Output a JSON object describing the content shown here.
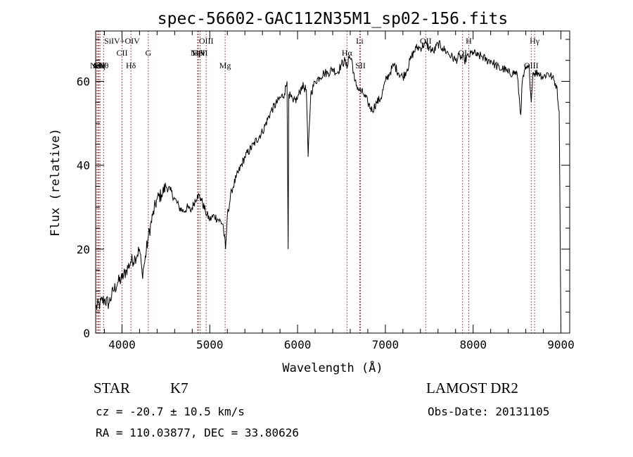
{
  "chart_data": {
    "type": "line",
    "title": "spec-56602-GAC112N35M1_sp02-156.fits",
    "xlabel": "Wavelength (Å)",
    "ylabel": "Flux (relative)",
    "xlim": [
      3700,
      9100
    ],
    "ylim": [
      0,
      72
    ],
    "xticks": [
      4000,
      5000,
      6000,
      7000,
      8000,
      9000
    ],
    "yticks": [
      0,
      20,
      40,
      60
    ],
    "grid": false,
    "line_color": "#000000",
    "marker_color": "#8b1a1a",
    "series": [
      {
        "x": [
          3700,
          3750,
          3800,
          3850,
          3900,
          3950,
          4000,
          4050,
          4100,
          4150,
          4200,
          4230,
          4260,
          4300,
          4350,
          4400,
          4450,
          4500,
          4550,
          4600,
          4650,
          4700,
          4750,
          4780,
          4820,
          4860,
          4900,
          4950,
          5000,
          5050,
          5100,
          5150,
          5180,
          5200,
          5250,
          5300,
          5400,
          5500,
          5600,
          5700,
          5800,
          5850,
          5880,
          5893,
          5900,
          5950,
          6000,
          6050,
          6100,
          6120,
          6150,
          6200,
          6250,
          6300,
          6350,
          6400,
          6450,
          6500,
          6540,
          6563,
          6580,
          6620,
          6650,
          6700,
          6750,
          6800,
          6850,
          6900,
          6950,
          7000,
          7050,
          7100,
          7150,
          7200,
          7250,
          7300,
          7350,
          7400,
          7450,
          7500,
          7550,
          7600,
          7650,
          7700,
          7750,
          7800,
          7850,
          7900,
          7950,
          8000,
          8050,
          8100,
          8150,
          8200,
          8250,
          8300,
          8350,
          8400,
          8450,
          8500,
          8542,
          8560,
          8600,
          8640,
          8662,
          8680,
          8700,
          8750,
          8800,
          8850,
          8900,
          8950,
          8980,
          9000
        ],
        "y": [
          6,
          7,
          8,
          7,
          10,
          12,
          13,
          15,
          17,
          18,
          20,
          14,
          17,
          23,
          28,
          32,
          33,
          35,
          34,
          32,
          30,
          29,
          30,
          29,
          31,
          33,
          32,
          29,
          27,
          28,
          27,
          26,
          20,
          28,
          34,
          37,
          42,
          45,
          48,
          53,
          56,
          57,
          60,
          20,
          57,
          55,
          56,
          59,
          58,
          42,
          57,
          60,
          61,
          62,
          62,
          63,
          62,
          64,
          65,
          63,
          66,
          65,
          60,
          58,
          57,
          55,
          53,
          55,
          56,
          60,
          62,
          64,
          62,
          61,
          63,
          66,
          68,
          68,
          69,
          68,
          67,
          69,
          68,
          67,
          66,
          65,
          66,
          65,
          66,
          67,
          66,
          66,
          65,
          65,
          64,
          63,
          63,
          62,
          62,
          62,
          52,
          60,
          63,
          63,
          55,
          62,
          62,
          62,
          61,
          62,
          61,
          59,
          53,
          1
        ]
      }
    ],
    "line_markers": [
      {
        "label": "Ar",
        "x": 3715,
        "row": 3
      },
      {
        "label": "NeV",
        "x": 3727,
        "row": 3
      },
      {
        "label": "OII",
        "x": 3738,
        "row": 3
      },
      {
        "label": "Hη",
        "x": 3750,
        "row": 3
      },
      {
        "label": "Hθ",
        "x": 3790,
        "row": 3
      },
      {
        "label": "SiIV+OIV",
        "x": 4000,
        "row": 1
      },
      {
        "label": "CII",
        "x": 4000,
        "row": 2
      },
      {
        "label": "Hδ",
        "x": 4102,
        "row": 3
      },
      {
        "label": "G",
        "x": 4300,
        "row": 2
      },
      {
        "label": "NeV",
        "x": 4870,
        "row": 2
      },
      {
        "label": "Hβ",
        "x": 4861,
        "row": 2
      },
      {
        "label": "OIII",
        "x": 4959,
        "row": 1
      },
      {
        "label": "HeII",
        "x": 4890,
        "row": 2
      },
      {
        "label": "Mg",
        "x": 5175,
        "row": 3
      },
      {
        "label": "Li",
        "x": 6708,
        "row": 1
      },
      {
        "label": "Hα",
        "x": 6563,
        "row": 2
      },
      {
        "label": "SII",
        "x": 6717,
        "row": 3
      },
      {
        "label": "OII",
        "x": 7460,
        "row": 1
      },
      {
        "label": "H",
        "x": 7950,
        "row": 1
      },
      {
        "label": "OI",
        "x": 7880,
        "row": 2
      },
      {
        "label": "Hγ",
        "x": 8700,
        "row": 1
      },
      {
        "label": "OIII",
        "x": 8662,
        "row": 3
      }
    ]
  },
  "info": {
    "star_class": "STAR",
    "subclass": "K7",
    "survey": "LAMOST DR2",
    "cz": "cz = -20.7 ± 10.5 km/s",
    "obs_date": "Obs-Date: 20131105",
    "radec": "RA = 110.03877, DEC =  33.80626"
  }
}
